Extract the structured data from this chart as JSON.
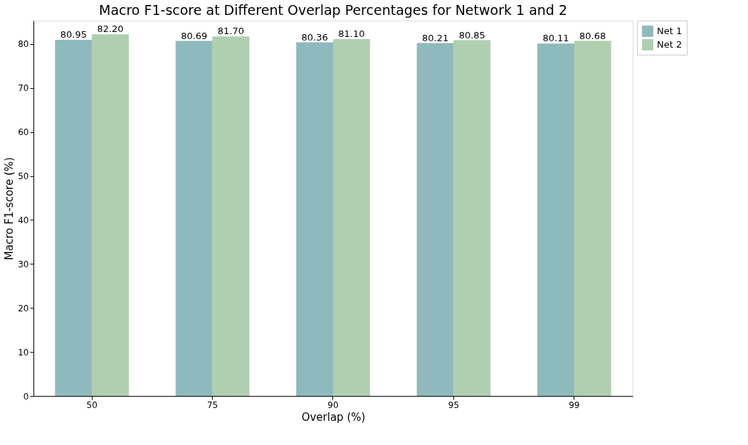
{
  "chart_data": {
    "type": "bar",
    "title": "Macro F1-score at Different Overlap Percentages for Network 1 and 2",
    "xlabel": "Overlap (%)",
    "ylabel": "Macro F1-score (%)",
    "categories": [
      "50",
      "75",
      "90",
      "95",
      "99"
    ],
    "series": [
      {
        "name": "Net 1",
        "color": "#8fbabd",
        "values": [
          80.95,
          80.69,
          80.36,
          80.21,
          80.11
        ],
        "value_labels": [
          "80.95",
          "80.69",
          "80.36",
          "80.21",
          "80.11"
        ]
      },
      {
        "name": "Net 2",
        "color": "#b0cfb0",
        "values": [
          82.2,
          81.7,
          81.1,
          80.85,
          80.68
        ],
        "value_labels": [
          "82.20",
          "81.70",
          "81.10",
          "80.85",
          "80.68"
        ]
      }
    ],
    "ylim": [
      0,
      85.3
    ],
    "yticks": [
      0,
      10,
      20,
      30,
      40,
      50,
      60,
      70,
      80
    ],
    "grid": false,
    "legend": "top right"
  }
}
